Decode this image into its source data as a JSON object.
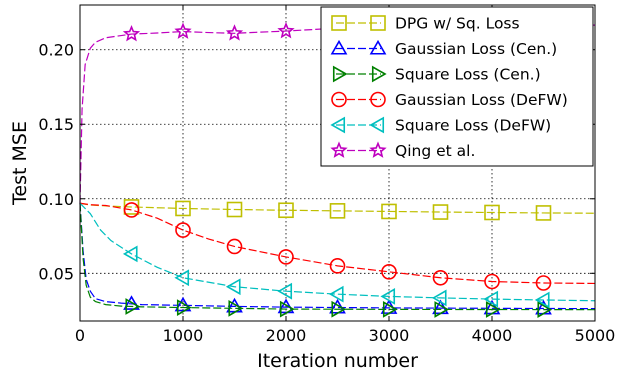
{
  "chart_data": {
    "type": "line",
    "xlabel": "Iteration number",
    "ylabel": "Test MSE",
    "xlim": [
      0,
      5000
    ],
    "ylim": [
      0.018,
      0.23
    ],
    "xticks": [
      0,
      1000,
      2000,
      3000,
      4000,
      5000
    ],
    "xtick_labels": [
      "0",
      "1000",
      "2000",
      "3000",
      "4000",
      "5000"
    ],
    "yticks": [
      0.05,
      0.1,
      0.15,
      0.2
    ],
    "ytick_labels": [
      "0.05",
      "0.10",
      "0.15",
      "0.20"
    ],
    "grid": true,
    "legend_position": "top-right",
    "series": [
      {
        "name": "DPG w/ Sq. Loss",
        "color": "#bfbf00",
        "marker": "square",
        "x": [
          0,
          100,
          250,
          500,
          750,
          1000,
          1500,
          2000,
          2500,
          3000,
          3500,
          4000,
          4500,
          5000
        ],
        "y": [
          0.097,
          0.0958,
          0.0952,
          0.0945,
          0.094,
          0.0935,
          0.0928,
          0.0923,
          0.0919,
          0.0915,
          0.0911,
          0.0908,
          0.0905,
          0.0903
        ],
        "marker_x": [
          500,
          1000,
          1500,
          2000,
          2500,
          3000,
          3500,
          4000,
          4500
        ]
      },
      {
        "name": "Gaussian Loss (Cen.)",
        "color": "#0000ff",
        "marker": "triangle-up",
        "x": [
          0,
          30,
          60,
          100,
          150,
          250,
          400,
          600,
          1000,
          1500,
          2000,
          3000,
          4000,
          5000
        ],
        "y": [
          0.097,
          0.065,
          0.046,
          0.038,
          0.033,
          0.031,
          0.03,
          0.029,
          0.0285,
          0.0278,
          0.0273,
          0.0268,
          0.0265,
          0.0263
        ],
        "marker_x": [
          500,
          1000,
          1500,
          2000,
          2500,
          3000,
          3500,
          4000,
          4500
        ]
      },
      {
        "name": "Square Loss (Cen.)",
        "color": "#008000",
        "marker": "triangle-right",
        "x": [
          0,
          30,
          60,
          100,
          150,
          250,
          400,
          600,
          1000,
          1500,
          2000,
          3000,
          4000,
          5000
        ],
        "y": [
          0.097,
          0.06,
          0.042,
          0.034,
          0.031,
          0.029,
          0.028,
          0.0275,
          0.027,
          0.0265,
          0.026,
          0.0258,
          0.0257,
          0.0256
        ],
        "marker_x": [
          500,
          1000,
          1500,
          2000,
          2500,
          3000,
          3500,
          4000,
          4500
        ]
      },
      {
        "name": "Gaussian Loss (DeFW)",
        "color": "#ff0000",
        "marker": "circle",
        "x": [
          0,
          100,
          250,
          500,
          750,
          1000,
          1250,
          1500,
          2000,
          2500,
          3000,
          3500,
          4000,
          4500,
          5000
        ],
        "y": [
          0.097,
          0.096,
          0.0955,
          0.0925,
          0.087,
          0.079,
          0.073,
          0.068,
          0.061,
          0.055,
          0.051,
          0.047,
          0.0445,
          0.0435,
          0.0432
        ],
        "marker_x": [
          500,
          1000,
          1500,
          2000,
          2500,
          3000,
          3500,
          4000,
          4500
        ]
      },
      {
        "name": "Square Loss (DeFW)",
        "color": "#00bfbf",
        "marker": "triangle-left",
        "x": [
          0,
          100,
          200,
          300,
          500,
          750,
          1000,
          1500,
          2000,
          2500,
          3000,
          3500,
          4000,
          4500,
          5000
        ],
        "y": [
          0.097,
          0.09,
          0.079,
          0.072,
          0.063,
          0.054,
          0.047,
          0.041,
          0.038,
          0.036,
          0.0345,
          0.0335,
          0.0327,
          0.0321,
          0.0316
        ],
        "marker_x": [
          500,
          1000,
          1500,
          2000,
          2500,
          3000,
          3500,
          4000,
          4500
        ]
      },
      {
        "name": "Qing et al.",
        "color": "#bf00bf",
        "marker": "star",
        "x": [
          0,
          20,
          50,
          100,
          150,
          250,
          400,
          500,
          750,
          1000,
          1250,
          1500,
          1750,
          2000,
          2250,
          2500,
          3000,
          3500,
          4000,
          4500,
          5000
        ],
        "y": [
          0.097,
          0.16,
          0.19,
          0.201,
          0.205,
          0.208,
          0.2095,
          0.2105,
          0.2112,
          0.2122,
          0.2115,
          0.211,
          0.2118,
          0.2125,
          0.2135,
          0.2145,
          0.2158,
          0.2165,
          0.2172,
          0.2168,
          0.2165
        ],
        "marker_x": [
          500,
          1000,
          1500,
          2000,
          2500,
          3000,
          3500,
          4000,
          4500
        ]
      }
    ]
  }
}
